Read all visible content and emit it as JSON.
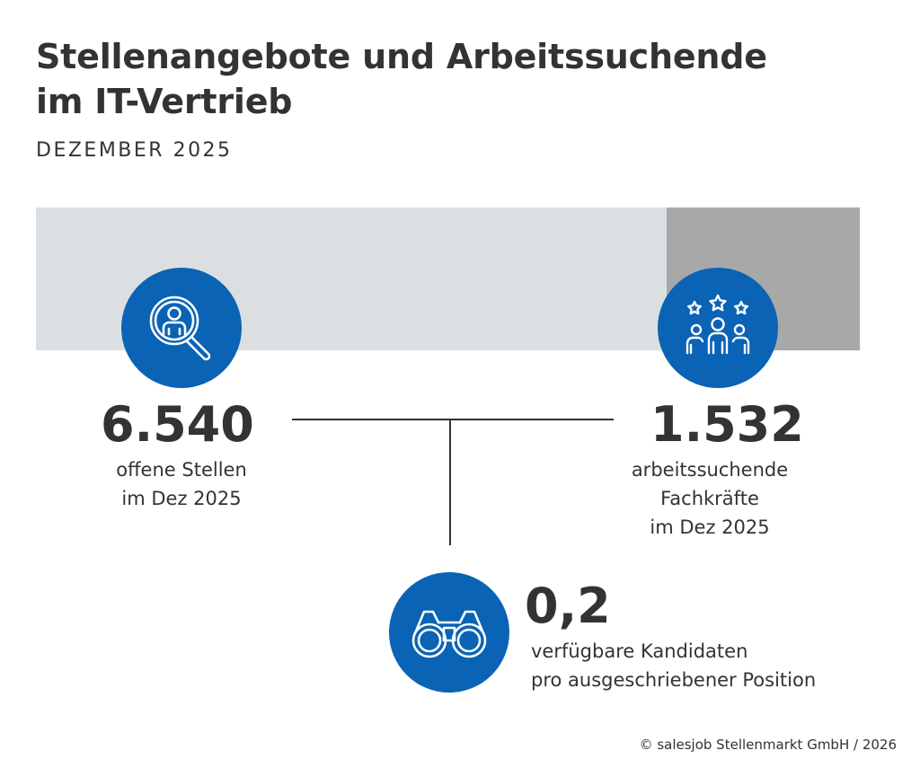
{
  "title_lines": [
    "Stellenangebote und Arbeitssuchende",
    "im IT-Vertrieb"
  ],
  "subtitle": "DEZEMBER 2025",
  "colors": {
    "accent": "#0a63b5",
    "bar_background": "#dcdfe2",
    "bar_fill": "#a8a8a8",
    "text": "#333333"
  },
  "chart_data": {
    "type": "bar",
    "categories": [
      "offene Stellen im Dez 2025",
      "arbeitssuchende Fachkräfte im Dez 2025"
    ],
    "values": [
      6540,
      1532
    ],
    "ratio": 0.2
  },
  "stats": {
    "jobs": {
      "value": "6.540",
      "label_lines": [
        "offene Stellen",
        "im Dez 2025"
      ],
      "icon": "search-person-icon"
    },
    "seekers": {
      "value": "1.532",
      "label_lines": [
        "arbeitssuchende",
        "Fachkräfte",
        "im Dez 2025"
      ],
      "icon": "people-stars-icon"
    },
    "ratio": {
      "value": "0,2",
      "label_lines": [
        "verfügbare Kandidaten",
        "pro ausgeschriebener Position"
      ],
      "icon": "binoculars-icon"
    }
  },
  "footer": "© salesjob Stellenmarkt GmbH / 2026"
}
